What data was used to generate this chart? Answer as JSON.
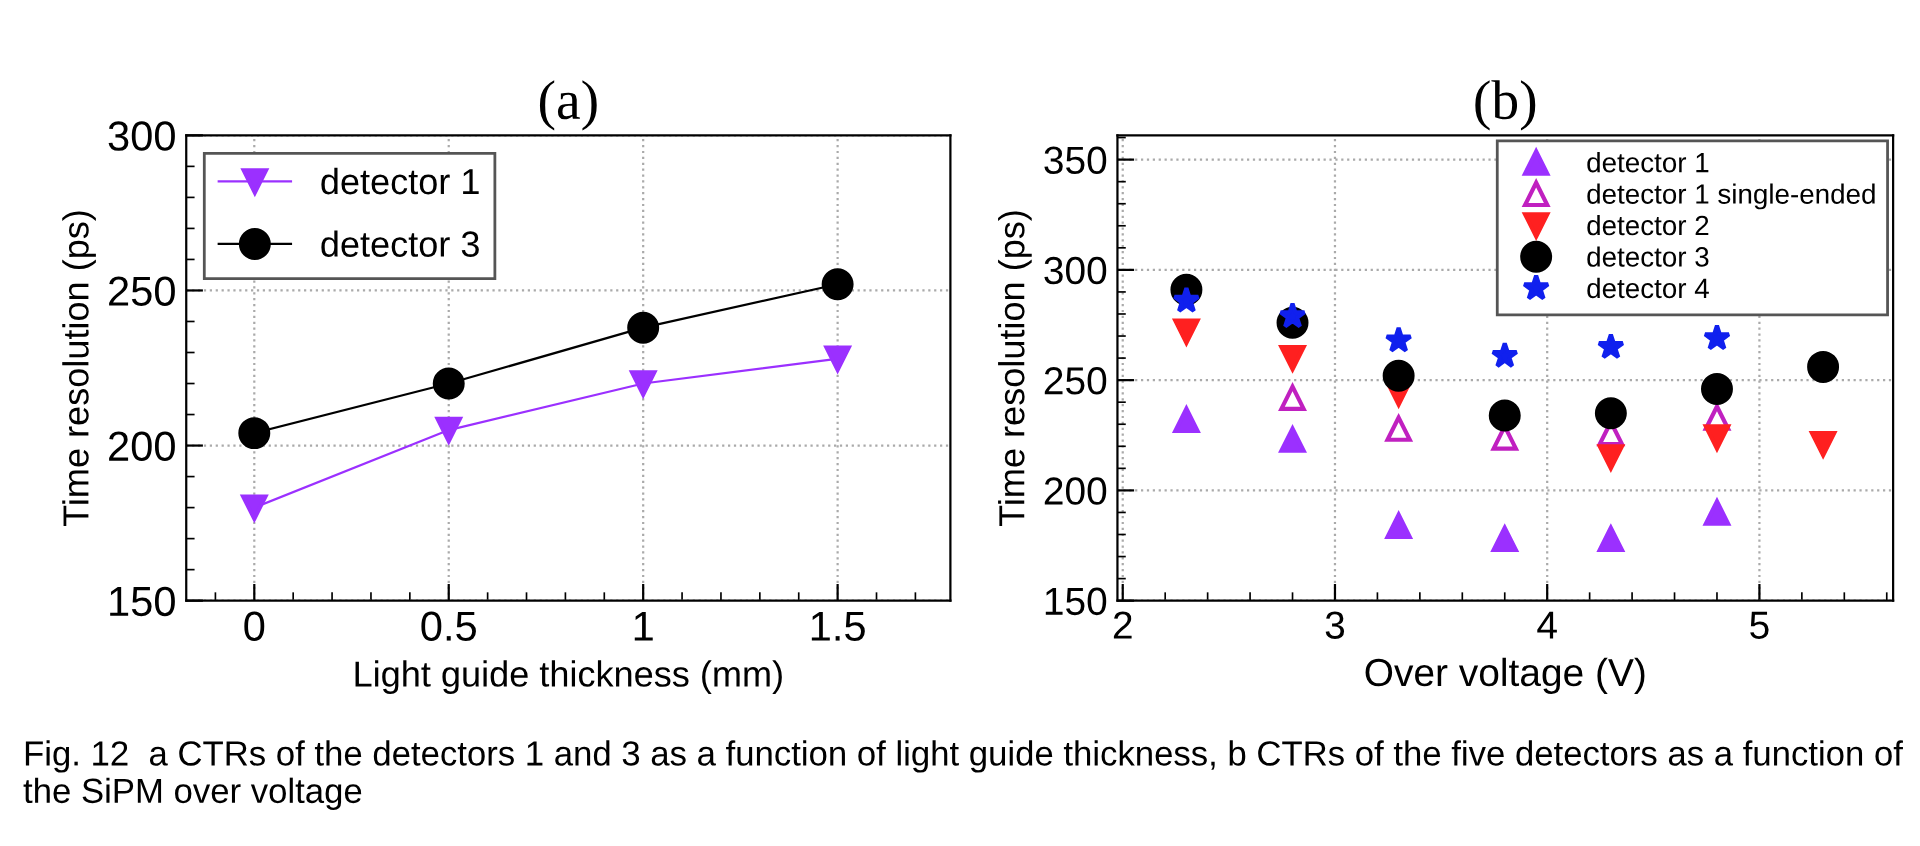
{
  "chart_data": [
    {
      "type": "line",
      "title": "(a)",
      "xlabel": "Light guide thickness (mm)",
      "ylabel": "Time resolution (ps)",
      "x": [
        0,
        0.5,
        1,
        1.5
      ],
      "xlim": [
        -0.175,
        1.79
      ],
      "xticks": [
        0,
        0.5,
        1,
        1.5
      ],
      "ylim": [
        150,
        300
      ],
      "yticks": [
        150,
        200,
        250,
        300
      ],
      "grid": true,
      "legend": "top left",
      "series": [
        {
          "name": "detector 1",
          "color": "#9b30ff",
          "marker": "triangle_down",
          "values": [
            180,
            205,
            220,
            228
          ]
        },
        {
          "name": "detector 3",
          "color": "#000000",
          "marker": "circle",
          "values": [
            204,
            220,
            238,
            252
          ]
        }
      ]
    },
    {
      "type": "scatter",
      "title": "(b)",
      "xlabel": "Over voltage (V)",
      "ylabel": "Time resolution (ps)",
      "x": [
        2.3,
        2.8,
        3.3,
        3.8,
        4.3,
        4.8,
        5.3
      ],
      "xlim": [
        1.975,
        5.63
      ],
      "xticks": [
        2,
        3,
        4,
        5
      ],
      "ylim": [
        150,
        361
      ],
      "yticks": [
        150,
        200,
        250,
        300,
        350
      ],
      "grid": true,
      "legend": "top right",
      "series": [
        {
          "name": "detector 1",
          "color": "#9b30ff",
          "marker": "triangle",
          "values": [
            232,
            223,
            184,
            178,
            178,
            190,
            null
          ]
        },
        {
          "name": "detector 1 single-ended",
          "color": "#c020c0",
          "marker": "triangle_open",
          "values": [
            null,
            242,
            228,
            224,
            226,
            233,
            null
          ]
        },
        {
          "name": "detector 2",
          "color": "#ff2020",
          "marker": "triangle_down",
          "values": [
            272,
            260,
            244,
            null,
            215,
            224,
            221
          ]
        },
        {
          "name": "detector 3",
          "color": "#000000",
          "marker": "circle",
          "values": [
            291,
            276,
            252,
            234,
            235,
            246,
            256
          ]
        },
        {
          "name": "detector 4",
          "color": "#1020ee",
          "marker": "star",
          "values": [
            286,
            279,
            268,
            261,
            265,
            269,
            null
          ]
        }
      ],
      "annotations": [
        "Fig. 12  a CTRs of the detectors 1 and 3 as a function of light guide thickness, b CTRs of the five detectors as a function of the SiPM over voltage"
      ]
    }
  ]
}
